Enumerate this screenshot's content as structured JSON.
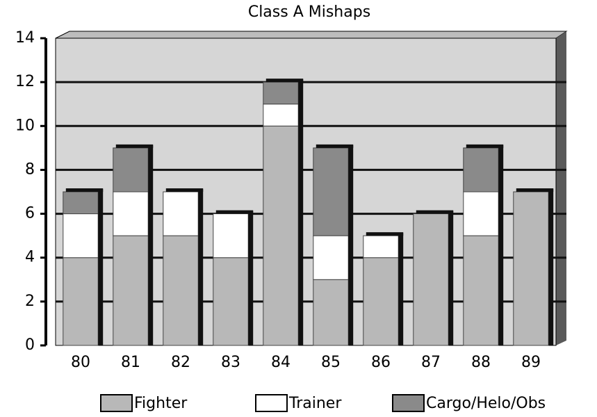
{
  "chart_data": {
    "type": "stacked_bar",
    "title": "Class A Mishaps",
    "categories": [
      "80",
      "81",
      "82",
      "83",
      "84",
      "85",
      "86",
      "87",
      "88",
      "89"
    ],
    "series": [
      {
        "name": "Fighter",
        "color": "#b8b8b8",
        "values": [
          4,
          5,
          5,
          4,
          10,
          3,
          4,
          6,
          5,
          7
        ]
      },
      {
        "name": "Trainer",
        "color": "#ffffff",
        "values": [
          2,
          2,
          2,
          2,
          1,
          2,
          1,
          0,
          2,
          0
        ]
      },
      {
        "name": "Cargo/Helo/Obs",
        "color": "#8a8a8a",
        "values": [
          1,
          2,
          0,
          0,
          1,
          4,
          0,
          0,
          2,
          0
        ]
      }
    ],
    "ylim": [
      0,
      14
    ],
    "yticks": [
      0,
      2,
      4,
      6,
      8,
      10,
      12,
      14
    ],
    "grid": true
  }
}
